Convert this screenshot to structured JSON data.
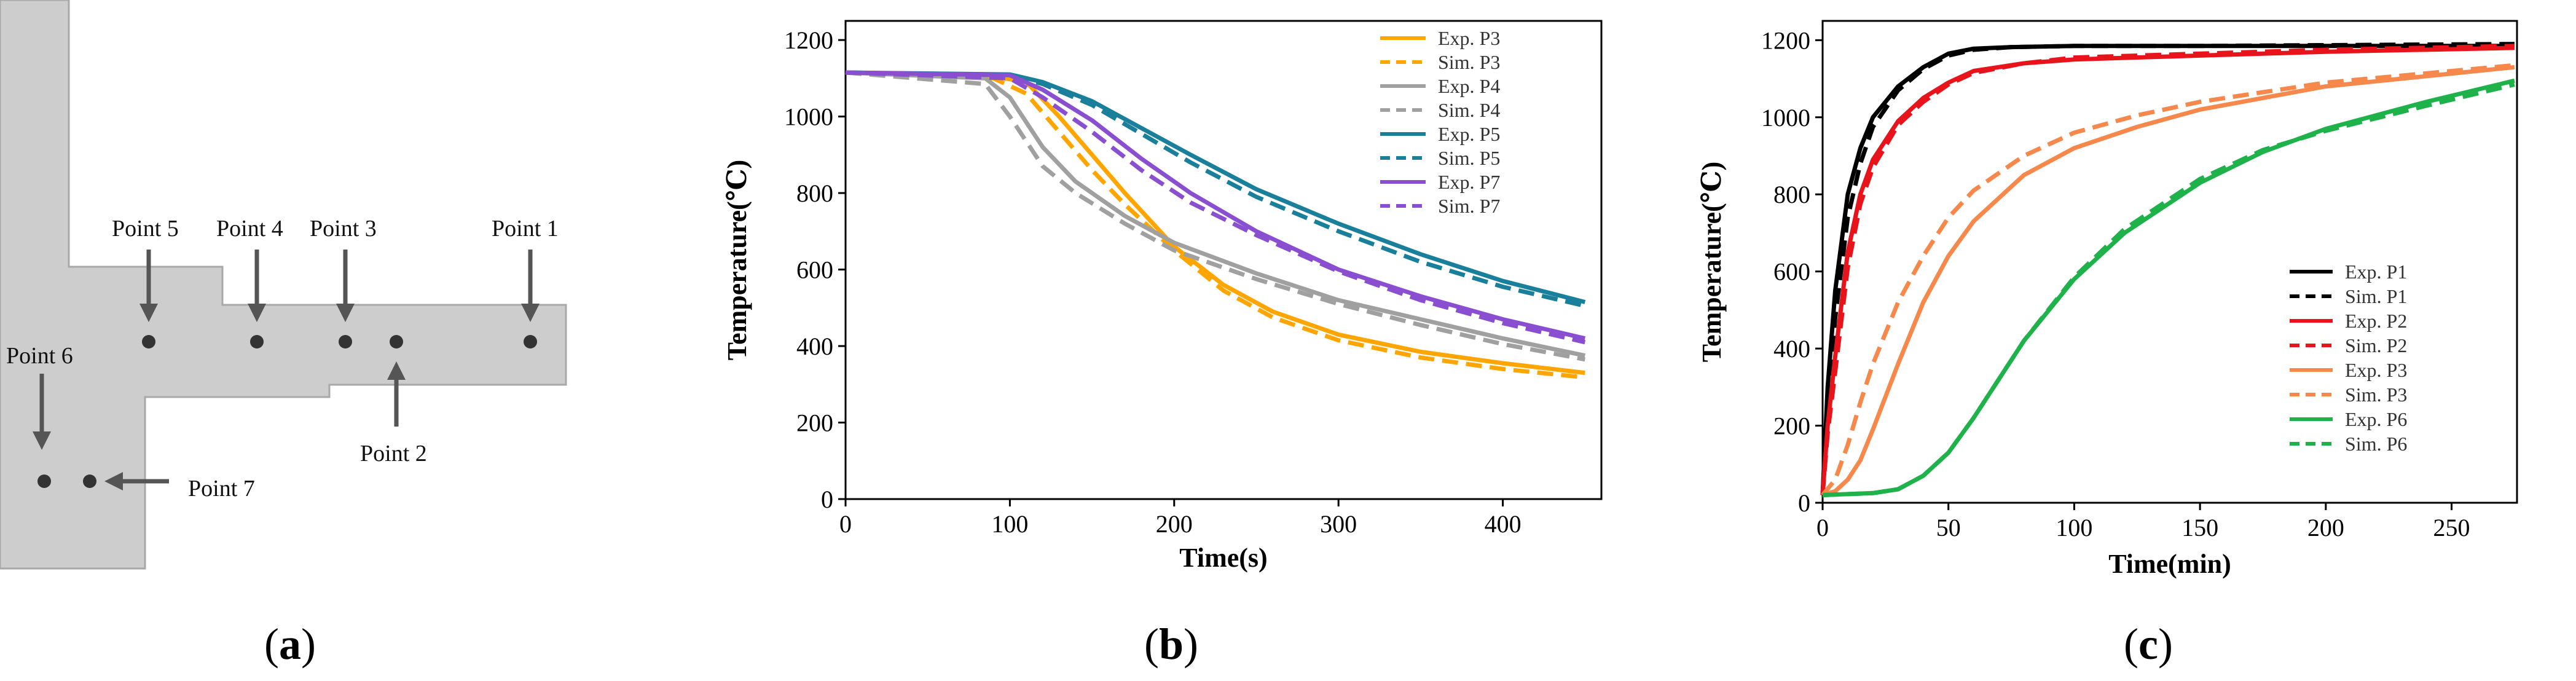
{
  "panel_labels": {
    "a": "a",
    "b": "b",
    "c": "c"
  },
  "diagram": {
    "points": [
      {
        "label": "Point 1"
      },
      {
        "label": "Point 2"
      },
      {
        "label": "Point 3"
      },
      {
        "label": "Point 4"
      },
      {
        "label": "Point 5"
      },
      {
        "label": "Point 6"
      },
      {
        "label": "Point 7"
      }
    ]
  },
  "chart_data": [
    {
      "type": "line",
      "xlabel": "Time(s)",
      "ylabel": "Temperature(℃)",
      "xlim": [
        0,
        460
      ],
      "ylim": [
        0,
        1250
      ],
      "xticks": [
        0,
        100,
        200,
        300,
        400
      ],
      "yticks": [
        0,
        200,
        400,
        600,
        800,
        1000,
        1200
      ],
      "legend_position": "top-right",
      "series": [
        {
          "name": "Exp. P3",
          "color": "#FFA500",
          "dash": "solid",
          "x": [
            0,
            90,
            110,
            130,
            150,
            170,
            200,
            230,
            260,
            300,
            350,
            400,
            450
          ],
          "y": [
            1115,
            1105,
            1090,
            1000,
            900,
            800,
            660,
            560,
            490,
            430,
            385,
            355,
            330
          ]
        },
        {
          "name": "Sim. P3",
          "color": "#FFA500",
          "dash": "dashed",
          "x": [
            0,
            90,
            110,
            130,
            150,
            170,
            200,
            230,
            260,
            300,
            350,
            400,
            450
          ],
          "y": [
            1115,
            1100,
            1060,
            960,
            860,
            770,
            650,
            545,
            475,
            415,
            370,
            340,
            318
          ]
        },
        {
          "name": "Exp. P4",
          "color": "#A0A0A0",
          "dash": "solid",
          "x": [
            0,
            85,
            100,
            120,
            140,
            170,
            200,
            250,
            300,
            350,
            400,
            450
          ],
          "y": [
            1115,
            1100,
            1050,
            920,
            830,
            740,
            670,
            590,
            520,
            470,
            420,
            375
          ]
        },
        {
          "name": "Sim. P4",
          "color": "#A0A0A0",
          "dash": "dashed",
          "x": [
            0,
            85,
            100,
            120,
            140,
            170,
            200,
            250,
            300,
            350,
            400,
            450
          ],
          "y": [
            1115,
            1085,
            1000,
            870,
            800,
            720,
            650,
            575,
            510,
            455,
            405,
            365
          ]
        },
        {
          "name": "Exp. P5",
          "color": "#1A7F9A",
          "dash": "solid",
          "x": [
            0,
            100,
            120,
            150,
            180,
            210,
            250,
            300,
            350,
            400,
            450
          ],
          "y": [
            1115,
            1110,
            1090,
            1040,
            970,
            900,
            810,
            720,
            640,
            570,
            515
          ]
        },
        {
          "name": "Sim. P5",
          "color": "#1A7F9A",
          "dash": "dashed",
          "x": [
            0,
            100,
            120,
            150,
            180,
            210,
            250,
            300,
            350,
            400,
            450
          ],
          "y": [
            1115,
            1108,
            1085,
            1030,
            955,
            880,
            790,
            700,
            620,
            555,
            505
          ]
        },
        {
          "name": "Exp. P7",
          "color": "#8A4FD0",
          "dash": "solid",
          "x": [
            0,
            100,
            120,
            150,
            180,
            210,
            250,
            300,
            350,
            400,
            450
          ],
          "y": [
            1115,
            1108,
            1070,
            990,
            890,
            800,
            700,
            600,
            530,
            470,
            420
          ]
        },
        {
          "name": "Sim. P7",
          "color": "#8A4FD0",
          "dash": "dashed",
          "x": [
            0,
            100,
            120,
            150,
            180,
            210,
            250,
            300,
            350,
            400,
            450
          ],
          "y": [
            1115,
            1100,
            1050,
            960,
            860,
            775,
            690,
            595,
            520,
            460,
            410
          ]
        }
      ]
    },
    {
      "type": "line",
      "xlabel": "Time(min)",
      "ylabel": "Temperature(℃)",
      "xlim": [
        0,
        276
      ],
      "ylim": [
        0,
        1250
      ],
      "xticks": [
        0,
        50,
        100,
        150,
        200,
        250
      ],
      "yticks": [
        0,
        200,
        400,
        600,
        800,
        1000,
        1200
      ],
      "legend_position": "bottom-right",
      "series": [
        {
          "name": "Exp. P1",
          "color": "#000000",
          "dash": "solid",
          "x": [
            0,
            2,
            5,
            10,
            15,
            20,
            30,
            40,
            50,
            60,
            75,
            100,
            150,
            200,
            275
          ],
          "y": [
            20,
            300,
            550,
            800,
            920,
            1000,
            1080,
            1130,
            1165,
            1178,
            1182,
            1185,
            1185,
            1185,
            1185
          ]
        },
        {
          "name": "Sim. P1",
          "color": "#000000",
          "dash": "dashed",
          "x": [
            0,
            2,
            5,
            10,
            15,
            20,
            30,
            40,
            50,
            60,
            75,
            100,
            150,
            200,
            275
          ],
          "y": [
            20,
            250,
            480,
            740,
            880,
            975,
            1070,
            1125,
            1160,
            1175,
            1182,
            1185,
            1185,
            1187,
            1190
          ]
        },
        {
          "name": "Exp. P2",
          "color": "#E8141C",
          "dash": "solid",
          "x": [
            0,
            2,
            5,
            10,
            15,
            20,
            30,
            40,
            50,
            60,
            80,
            100,
            150,
            200,
            275
          ],
          "y": [
            20,
            200,
            380,
            650,
            800,
            890,
            990,
            1050,
            1090,
            1120,
            1140,
            1150,
            1160,
            1170,
            1180
          ]
        },
        {
          "name": "Sim. P2",
          "color": "#E8141C",
          "dash": "dashed",
          "x": [
            0,
            2,
            5,
            10,
            15,
            20,
            30,
            40,
            50,
            60,
            80,
            100,
            150,
            200,
            275
          ],
          "y": [
            20,
            180,
            340,
            610,
            775,
            870,
            980,
            1040,
            1085,
            1115,
            1140,
            1155,
            1165,
            1175,
            1185
          ]
        },
        {
          "name": "Exp. P3",
          "color": "#F5884A",
          "dash": "solid",
          "x": [
            0,
            5,
            10,
            15,
            20,
            30,
            40,
            50,
            60,
            80,
            100,
            125,
            150,
            200,
            275
          ],
          "y": [
            20,
            30,
            60,
            110,
            190,
            360,
            520,
            640,
            730,
            850,
            920,
            975,
            1020,
            1080,
            1130
          ]
        },
        {
          "name": "Sim. P3",
          "color": "#F5884A",
          "dash": "dashed",
          "x": [
            0,
            5,
            10,
            15,
            20,
            30,
            40,
            50,
            60,
            80,
            100,
            125,
            150,
            200,
            275
          ],
          "y": [
            20,
            60,
            150,
            260,
            360,
            520,
            640,
            740,
            810,
            900,
            960,
            1005,
            1040,
            1090,
            1135
          ]
        },
        {
          "name": "Exp. P6",
          "color": "#1FB24A",
          "dash": "solid",
          "x": [
            0,
            20,
            30,
            40,
            50,
            60,
            70,
            80,
            100,
            120,
            150,
            175,
            200,
            240,
            275
          ],
          "y": [
            20,
            25,
            35,
            70,
            130,
            220,
            320,
            420,
            580,
            700,
            830,
            910,
            970,
            1040,
            1095
          ]
        },
        {
          "name": "Sim. P6",
          "color": "#1FB24A",
          "dash": "dashed",
          "x": [
            0,
            20,
            30,
            40,
            50,
            60,
            70,
            80,
            100,
            120,
            150,
            175,
            200,
            240,
            275
          ],
          "y": [
            20,
            25,
            35,
            70,
            130,
            220,
            320,
            420,
            585,
            710,
            840,
            915,
            965,
            1030,
            1085
          ]
        }
      ]
    }
  ]
}
